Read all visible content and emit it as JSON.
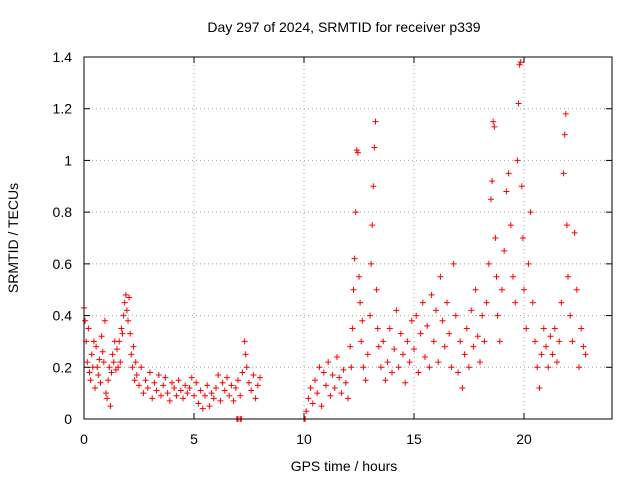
{
  "chart_data": {
    "type": "scatter",
    "title": "Day 297 of 2024, SRMTID for receiver p339",
    "xlabel": "GPS time / hours",
    "ylabel": "SRMTID / TECUs",
    "xlim": [
      0,
      24
    ],
    "ylim": [
      0,
      1.4
    ],
    "xticks": [
      0,
      5,
      10,
      15,
      20
    ],
    "yticks": [
      0,
      0.2,
      0.4,
      0.6,
      0.8,
      1.0,
      1.2,
      1.4
    ],
    "xtick_labels": [
      "0",
      "5",
      "10",
      "15",
      "20"
    ],
    "ytick_labels": [
      "0",
      "0.2",
      "0.4",
      "0.6",
      "0.8",
      "1",
      "1.2",
      "1.4"
    ],
    "grid": true,
    "marker": "+",
    "color": "#ff0000",
    "series": [
      {
        "name": "SRMTID",
        "points": [
          [
            0.0,
            0.43
          ],
          [
            0.05,
            0.38
          ],
          [
            0.1,
            0.3
          ],
          [
            0.15,
            0.22
          ],
          [
            0.2,
            0.35
          ],
          [
            0.25,
            0.18
          ],
          [
            0.3,
            0.15
          ],
          [
            0.35,
            0.25
          ],
          [
            0.4,
            0.2
          ],
          [
            0.45,
            0.3
          ],
          [
            0.5,
            0.12
          ],
          [
            0.55,
            0.28
          ],
          [
            0.6,
            0.2
          ],
          [
            0.65,
            0.17
          ],
          [
            0.7,
            0.23
          ],
          [
            0.75,
            0.14
          ],
          [
            0.8,
            0.32
          ],
          [
            0.85,
            0.26
          ],
          [
            0.9,
            0.22
          ],
          [
            0.95,
            0.38
          ],
          [
            1.0,
            0.1
          ],
          [
            1.05,
            0.08
          ],
          [
            1.1,
            0.15
          ],
          [
            1.15,
            0.2
          ],
          [
            1.2,
            0.05
          ],
          [
            1.25,
            0.18
          ],
          [
            1.3,
            0.25
          ],
          [
            1.35,
            0.22
          ],
          [
            1.4,
            0.3
          ],
          [
            1.45,
            0.19
          ],
          [
            1.5,
            0.27
          ],
          [
            1.55,
            0.2
          ],
          [
            1.6,
            0.3
          ],
          [
            1.65,
            0.22
          ],
          [
            1.7,
            0.35
          ],
          [
            1.75,
            0.33
          ],
          [
            1.8,
            0.4
          ],
          [
            1.85,
            0.45
          ],
          [
            1.9,
            0.48
          ],
          [
            1.95,
            0.42
          ],
          [
            2.0,
            0.38
          ],
          [
            2.05,
            0.47
          ],
          [
            2.1,
            0.33
          ],
          [
            2.15,
            0.25
          ],
          [
            2.2,
            0.2
          ],
          [
            2.25,
            0.28
          ],
          [
            2.3,
            0.15
          ],
          [
            2.35,
            0.22
          ],
          [
            2.4,
            0.17
          ],
          [
            2.5,
            0.13
          ],
          [
            2.6,
            0.2
          ],
          [
            2.7,
            0.1
          ],
          [
            2.8,
            0.15
          ],
          [
            2.9,
            0.12
          ],
          [
            3.0,
            0.18
          ],
          [
            3.1,
            0.08
          ],
          [
            3.2,
            0.14
          ],
          [
            3.3,
            0.11
          ],
          [
            3.4,
            0.17
          ],
          [
            3.5,
            0.09
          ],
          [
            3.6,
            0.13
          ],
          [
            3.7,
            0.16
          ],
          [
            3.8,
            0.1
          ],
          [
            3.9,
            0.07
          ],
          [
            4.0,
            0.14
          ],
          [
            4.1,
            0.12
          ],
          [
            4.2,
            0.09
          ],
          [
            4.3,
            0.15
          ],
          [
            4.4,
            0.11
          ],
          [
            4.5,
            0.08
          ],
          [
            4.6,
            0.13
          ],
          [
            4.7,
            0.1
          ],
          [
            4.8,
            0.12
          ],
          [
            4.9,
            0.16
          ],
          [
            5.0,
            0.09
          ],
          [
            5.1,
            0.14
          ],
          [
            5.2,
            0.06
          ],
          [
            5.3,
            0.11
          ],
          [
            5.4,
            0.04
          ],
          [
            5.5,
            0.09
          ],
          [
            5.6,
            0.13
          ],
          [
            5.7,
            0.05
          ],
          [
            5.8,
            0.1
          ],
          [
            5.9,
            0.08
          ],
          [
            6.0,
            0.12
          ],
          [
            6.1,
            0.17
          ],
          [
            6.2,
            0.07
          ],
          [
            6.3,
            0.14
          ],
          [
            6.4,
            0.11
          ],
          [
            6.5,
            0.16
          ],
          [
            6.6,
            0.09
          ],
          [
            6.7,
            0.13
          ],
          [
            6.8,
            0.07
          ],
          [
            6.9,
            0.12
          ],
          [
            7.0,
            0.15
          ],
          [
            7.1,
            0.09
          ],
          [
            7.2,
            0.18
          ],
          [
            7.3,
            0.3
          ],
          [
            7.35,
            0.25
          ],
          [
            7.4,
            0.2
          ],
          [
            7.5,
            0.14
          ],
          [
            7.6,
            0.11
          ],
          [
            7.7,
            0.17
          ],
          [
            7.8,
            0.08
          ],
          [
            7.9,
            0.13
          ],
          [
            8.0,
            0.16
          ],
          [
            6.95,
            0.0
          ],
          [
            7.0,
            0.0
          ],
          [
            7.1,
            0.0
          ],
          [
            7.15,
            0.0
          ],
          [
            10.0,
            0.0
          ],
          [
            10.05,
            0.0
          ],
          [
            10.1,
            0.03
          ],
          [
            10.2,
            0.08
          ],
          [
            10.3,
            0.12
          ],
          [
            10.4,
            0.06
          ],
          [
            10.5,
            0.15
          ],
          [
            10.6,
            0.1
          ],
          [
            10.7,
            0.2
          ],
          [
            10.8,
            0.05
          ],
          [
            10.9,
            0.18
          ],
          [
            11.0,
            0.13
          ],
          [
            11.1,
            0.22
          ],
          [
            11.2,
            0.09
          ],
          [
            11.3,
            0.17
          ],
          [
            11.4,
            0.12
          ],
          [
            11.5,
            0.24
          ],
          [
            11.6,
            0.16
          ],
          [
            11.7,
            0.1
          ],
          [
            11.8,
            0.19
          ],
          [
            11.9,
            0.14
          ],
          [
            12.0,
            0.08
          ],
          [
            12.1,
            0.28
          ],
          [
            12.15,
            0.2
          ],
          [
            12.2,
            0.35
          ],
          [
            12.25,
            0.5
          ],
          [
            12.3,
            0.62
          ],
          [
            12.35,
            0.8
          ],
          [
            12.4,
            1.04
          ],
          [
            12.45,
            1.03
          ],
          [
            12.5,
            0.55
          ],
          [
            12.55,
            0.45
          ],
          [
            12.6,
            0.3
          ],
          [
            12.65,
            0.38
          ],
          [
            12.7,
            0.2
          ],
          [
            12.8,
            0.15
          ],
          [
            12.9,
            0.25
          ],
          [
            13.0,
            0.4
          ],
          [
            13.05,
            0.6
          ],
          [
            13.1,
            0.75
          ],
          [
            13.15,
            0.9
          ],
          [
            13.2,
            1.05
          ],
          [
            13.25,
            1.15
          ],
          [
            13.3,
            0.5
          ],
          [
            13.35,
            0.35
          ],
          [
            13.4,
            0.28
          ],
          [
            13.5,
            0.2
          ],
          [
            13.6,
            0.3
          ],
          [
            13.7,
            0.15
          ],
          [
            13.8,
            0.22
          ],
          [
            13.9,
            0.35
          ],
          [
            14.0,
            0.18
          ],
          [
            14.1,
            0.27
          ],
          [
            14.2,
            0.42
          ],
          [
            14.3,
            0.2
          ],
          [
            14.4,
            0.33
          ],
          [
            14.5,
            0.25
          ],
          [
            14.6,
            0.14
          ],
          [
            14.7,
            0.3
          ],
          [
            14.8,
            0.22
          ],
          [
            14.9,
            0.38
          ],
          [
            15.0,
            0.27
          ],
          [
            15.1,
            0.4
          ],
          [
            15.2,
            0.18
          ],
          [
            15.3,
            0.33
          ],
          [
            15.4,
            0.45
          ],
          [
            15.5,
            0.24
          ],
          [
            15.6,
            0.36
          ],
          [
            15.7,
            0.2
          ],
          [
            15.8,
            0.48
          ],
          [
            15.9,
            0.3
          ],
          [
            16.0,
            0.42
          ],
          [
            16.1,
            0.22
          ],
          [
            16.2,
            0.55
          ],
          [
            16.3,
            0.38
          ],
          [
            16.4,
            0.28
          ],
          [
            16.5,
            0.45
          ],
          [
            16.6,
            0.33
          ],
          [
            16.7,
            0.2
          ],
          [
            16.8,
            0.6
          ],
          [
            16.9,
            0.4
          ],
          [
            17.0,
            0.18
          ],
          [
            17.1,
            0.3
          ],
          [
            17.2,
            0.12
          ],
          [
            17.3,
            0.25
          ],
          [
            17.4,
            0.35
          ],
          [
            17.5,
            0.2
          ],
          [
            17.6,
            0.42
          ],
          [
            17.7,
            0.28
          ],
          [
            17.8,
            0.5
          ],
          [
            17.9,
            0.32
          ],
          [
            18.0,
            0.22
          ],
          [
            18.1,
            0.4
          ],
          [
            18.2,
            0.3
          ],
          [
            18.3,
            0.45
          ],
          [
            18.4,
            0.6
          ],
          [
            18.5,
            0.85
          ],
          [
            18.55,
            0.92
          ],
          [
            18.6,
            1.15
          ],
          [
            18.65,
            1.13
          ],
          [
            18.7,
            0.7
          ],
          [
            18.75,
            0.55
          ],
          [
            18.8,
            0.4
          ],
          [
            18.9,
            0.3
          ],
          [
            19.0,
            0.5
          ],
          [
            19.1,
            0.65
          ],
          [
            19.2,
            0.88
          ],
          [
            19.3,
            0.95
          ],
          [
            19.4,
            0.75
          ],
          [
            19.5,
            0.55
          ],
          [
            19.6,
            0.45
          ],
          [
            19.7,
            1.0
          ],
          [
            19.75,
            1.22
          ],
          [
            19.8,
            1.37
          ],
          [
            19.85,
            1.38
          ],
          [
            19.9,
            0.9
          ],
          [
            19.95,
            0.7
          ],
          [
            20.0,
            0.5
          ],
          [
            20.1,
            0.35
          ],
          [
            20.2,
            0.6
          ],
          [
            20.3,
            0.8
          ],
          [
            20.4,
            0.45
          ],
          [
            20.5,
            0.3
          ],
          [
            20.6,
            0.2
          ],
          [
            20.7,
            0.12
          ],
          [
            20.8,
            0.25
          ],
          [
            20.9,
            0.35
          ],
          [
            21.0,
            0.28
          ],
          [
            21.1,
            0.2
          ],
          [
            21.2,
            0.32
          ],
          [
            21.3,
            0.25
          ],
          [
            21.4,
            0.35
          ],
          [
            21.5,
            0.22
          ],
          [
            21.6,
            0.3
          ],
          [
            21.7,
            0.45
          ],
          [
            21.8,
            0.95
          ],
          [
            21.85,
            1.1
          ],
          [
            21.9,
            1.18
          ],
          [
            21.95,
            0.75
          ],
          [
            22.0,
            0.55
          ],
          [
            22.1,
            0.4
          ],
          [
            22.2,
            0.3
          ],
          [
            22.3,
            0.72
          ],
          [
            22.4,
            0.5
          ],
          [
            22.5,
            0.2
          ],
          [
            22.6,
            0.35
          ],
          [
            22.7,
            0.28
          ],
          [
            22.8,
            0.25
          ]
        ]
      }
    ]
  }
}
